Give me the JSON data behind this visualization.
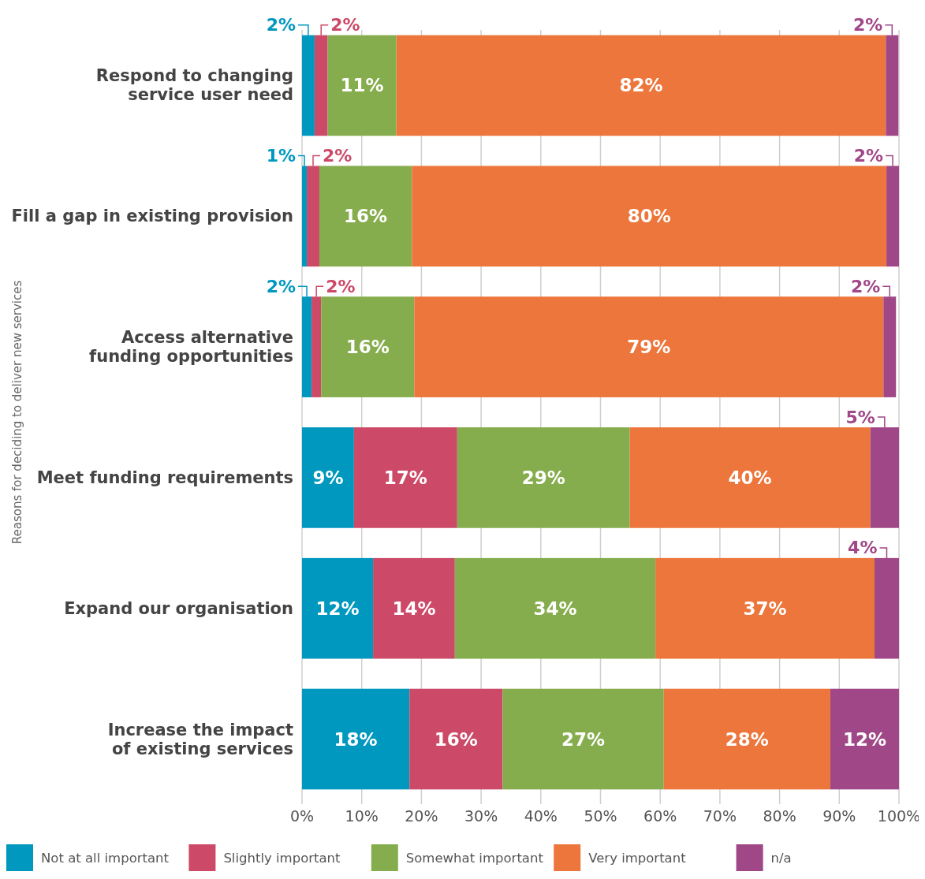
{
  "chart_data": {
    "type": "bar",
    "orientation": "horizontal",
    "stacked": true,
    "ylabel": "Reasons for deciding to deliver new services",
    "categories": [
      "Respond to changing service user need",
      "Fill a gap in existing provision",
      "Access alternative funding opportunities",
      "Meet funding requirements",
      "Expand our organisation",
      "Increase the impact of existing services"
    ],
    "series": [
      {
        "name": "Not at all important",
        "color": "#0098bf",
        "values": [
          2.1,
          0.8,
          1.6,
          8.7,
          11.9,
          18
        ],
        "value_labels": [
          "2%",
          "1%",
          "2%",
          "9%",
          "12%",
          "18%"
        ]
      },
      {
        "name": "Slightly important",
        "color": "#cc4a67",
        "values": [
          2.2,
          2.1,
          1.6,
          17.3,
          13.7,
          15.6
        ],
        "value_labels": [
          "2%",
          "2%",
          "2%",
          "17%",
          "14%",
          "16%"
        ]
      },
      {
        "name": "Somewhat important",
        "color": "#86ad4d",
        "values": [
          11.5,
          15.5,
          15.6,
          28.9,
          33.6,
          27
        ],
        "value_labels": [
          "11%",
          "16%",
          "16%",
          "29%",
          "34%",
          "27%"
        ]
      },
      {
        "name": "Very important",
        "color": "#ec763b",
        "values": [
          82,
          79.5,
          78.6,
          40.3,
          36.7,
          27.9
        ],
        "value_labels": [
          "82%",
          "80%",
          "79%",
          "40%",
          "37%",
          "28%"
        ]
      },
      {
        "name": "n/a",
        "color": "#a04787",
        "values": [
          2.1,
          2.1,
          2.1,
          4.8,
          4.1,
          11.5
        ],
        "value_labels": [
          "2%",
          "2%",
          "2%",
          "5%",
          "4%",
          "12%"
        ]
      }
    ],
    "xlim": [
      0,
      100
    ],
    "xticks": [
      {
        "value": 0,
        "label": "0%"
      },
      {
        "value": 10,
        "label": "10%"
      },
      {
        "value": 20,
        "label": "20%"
      },
      {
        "value": 30,
        "label": "30%"
      },
      {
        "value": 40,
        "label": "40%"
      },
      {
        "value": 50,
        "label": "50%"
      },
      {
        "value": 60,
        "label": "60%"
      },
      {
        "value": 70,
        "label": "70%"
      },
      {
        "value": 80,
        "label": "80%"
      },
      {
        "value": 90,
        "label": "90%"
      },
      {
        "value": 100,
        "label": "100%"
      }
    ],
    "grid": "x",
    "legend": "bottom"
  }
}
